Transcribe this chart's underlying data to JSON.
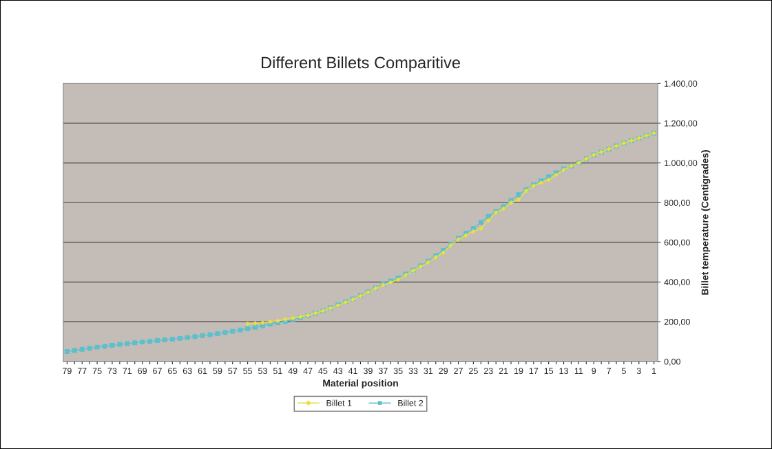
{
  "chart_data": {
    "type": "line",
    "title": "Different Billets Comparitive",
    "xlabel": "Material position",
    "ylabel": "Billet temperature (Centigrades)",
    "categories": [
      "79",
      null,
      "77",
      null,
      "75",
      null,
      "73",
      null,
      "71",
      null,
      "69",
      null,
      "67",
      null,
      "65",
      null,
      "63",
      null,
      "61",
      null,
      "59",
      null,
      "57",
      null,
      "55",
      null,
      "53",
      null,
      "51",
      null,
      "49",
      null,
      "47",
      null,
      "45",
      null,
      "43",
      null,
      "41",
      null,
      "39",
      null,
      "37",
      null,
      "35",
      null,
      "33",
      null,
      "31",
      null,
      "29",
      null,
      "27",
      null,
      "25",
      null,
      "23",
      null,
      "21",
      null,
      "19",
      null,
      "17",
      null,
      "15",
      null,
      "13",
      null,
      "11",
      null,
      "9",
      null,
      "7",
      null,
      "5",
      null,
      "3",
      null,
      "1"
    ],
    "series": [
      {
        "name": "Billet 1",
        "color": "#e8e040",
        "marker": "diamond",
        "values": [
          null,
          null,
          null,
          null,
          null,
          null,
          null,
          null,
          null,
          null,
          null,
          null,
          null,
          null,
          null,
          null,
          null,
          null,
          null,
          null,
          null,
          null,
          null,
          null,
          190,
          192,
          195,
          200,
          205,
          212,
          218,
          225,
          232,
          243,
          255,
          268,
          282,
          298,
          312,
          330,
          348,
          368,
          385,
          398,
          412,
          435,
          458,
          478,
          500,
          525,
          548,
          585,
          615,
          635,
          655,
          670,
          710,
          750,
          770,
          800,
          815,
          860,
          885,
          900,
          915,
          940,
          965,
          985,
          1000,
          1020,
          1040,
          1055,
          1070,
          1085,
          1100,
          1112,
          1125,
          1138,
          1150
        ]
      },
      {
        "name": "Billet 2",
        "color": "#5cc0cc",
        "marker": "square",
        "values": [
          50,
          55,
          61,
          66,
          72,
          76,
          81,
          86,
          90,
          94,
          98,
          101,
          105,
          109,
          112,
          116,
          120,
          125,
          130,
          135,
          140,
          146,
          152,
          158,
          165,
          172,
          180,
          188,
          195,
          202,
          210,
          220,
          230,
          242,
          255,
          270,
          285,
          300,
          315,
          332,
          350,
          370,
          390,
          405,
          420,
          440,
          460,
          482,
          505,
          532,
          560,
          590,
          620,
          645,
          670,
          700,
          730,
          755,
          780,
          810,
          840,
          865,
          890,
          910,
          930,
          950,
          970,
          985,
          1000,
          1020,
          1040,
          1055,
          1070,
          1085,
          1100,
          1112,
          1125,
          1138,
          1150
        ]
      }
    ],
    "ylim": [
      0,
      1400
    ],
    "yticks": [
      {
        "value": 0,
        "label": "0,00"
      },
      {
        "value": 200,
        "label": "200,00"
      },
      {
        "value": 400,
        "label": "400,00"
      },
      {
        "value": 600,
        "label": "600,00"
      },
      {
        "value": 800,
        "label": "800,00"
      },
      {
        "value": 1000,
        "label": "1.000,00"
      },
      {
        "value": 1200,
        "label": "1.200,00"
      },
      {
        "value": 1400,
        "label": "1.400,00"
      }
    ],
    "grid": "y",
    "legend": "bottom",
    "line_style": "solid"
  }
}
